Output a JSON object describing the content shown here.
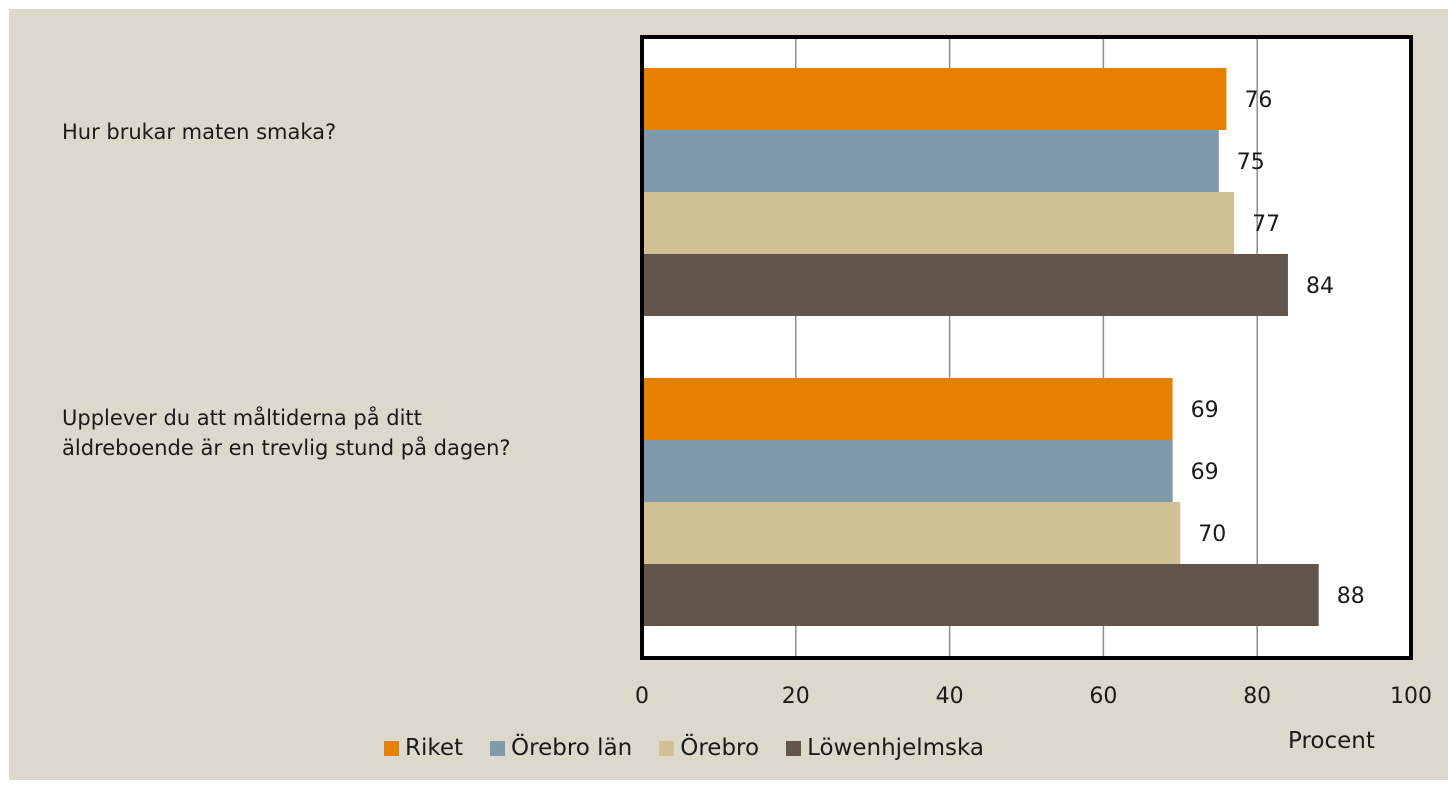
{
  "chart_data": {
    "type": "bar",
    "orientation": "horizontal",
    "categories": [
      "Hur brukar maten smaka?",
      "Upplever du att måltiderna på ditt äldreboende är en trevlig stund på dagen?"
    ],
    "series": [
      {
        "name": "Riket",
        "color": "#e68000",
        "values": [
          76,
          69
        ]
      },
      {
        "name": "Örebro län",
        "color": "#7e9aab",
        "values": [
          75,
          69
        ]
      },
      {
        "name": "Örebro",
        "color": "#d3c196",
        "values": [
          77,
          70
        ]
      },
      {
        "name": "Löwenhjelmska",
        "color": "#63554a",
        "values": [
          84,
          88
        ]
      }
    ],
    "xlim": [
      0,
      100
    ],
    "xticks": [
      "0",
      "20",
      "40",
      "60",
      "80",
      "100"
    ],
    "xlabel": "Procent",
    "grid": "vertical",
    "legend_position": "bottom",
    "data_labels": true
  }
}
